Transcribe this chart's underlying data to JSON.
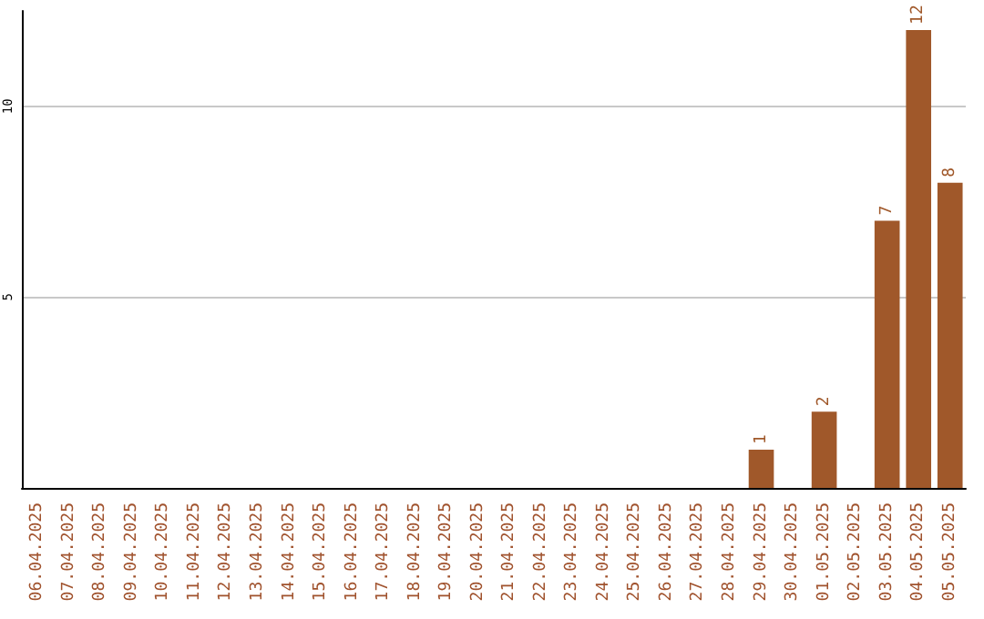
{
  "chart_data": {
    "type": "bar",
    "categories": [
      "06.04.2025",
      "07.04.2025",
      "08.04.2025",
      "09.04.2025",
      "10.04.2025",
      "11.04.2025",
      "12.04.2025",
      "13.04.2025",
      "14.04.2025",
      "15.04.2025",
      "16.04.2025",
      "17.04.2025",
      "18.04.2025",
      "19.04.2025",
      "20.04.2025",
      "21.04.2025",
      "22.04.2025",
      "23.04.2025",
      "24.04.2025",
      "25.04.2025",
      "26.04.2025",
      "27.04.2025",
      "28.04.2025",
      "29.04.2025",
      "30.04.2025",
      "01.05.2025",
      "02.05.2025",
      "03.05.2025",
      "04.05.2025",
      "05.05.2025"
    ],
    "values": [
      0,
      0,
      0,
      0,
      0,
      0,
      0,
      0,
      0,
      0,
      0,
      0,
      0,
      0,
      0,
      0,
      0,
      0,
      0,
      0,
      0,
      0,
      0,
      1,
      0,
      2,
      0,
      7,
      12,
      8
    ],
    "value_labels": [
      null,
      null,
      null,
      null,
      null,
      null,
      null,
      null,
      null,
      null,
      null,
      null,
      null,
      null,
      null,
      null,
      null,
      null,
      null,
      null,
      null,
      null,
      null,
      "1",
      null,
      "2",
      null,
      "7",
      "12",
      "8"
    ],
    "color": "#a0582a",
    "ylim": [
      0,
      12.5
    ],
    "yticks": [
      5,
      10
    ],
    "grid": "y"
  }
}
